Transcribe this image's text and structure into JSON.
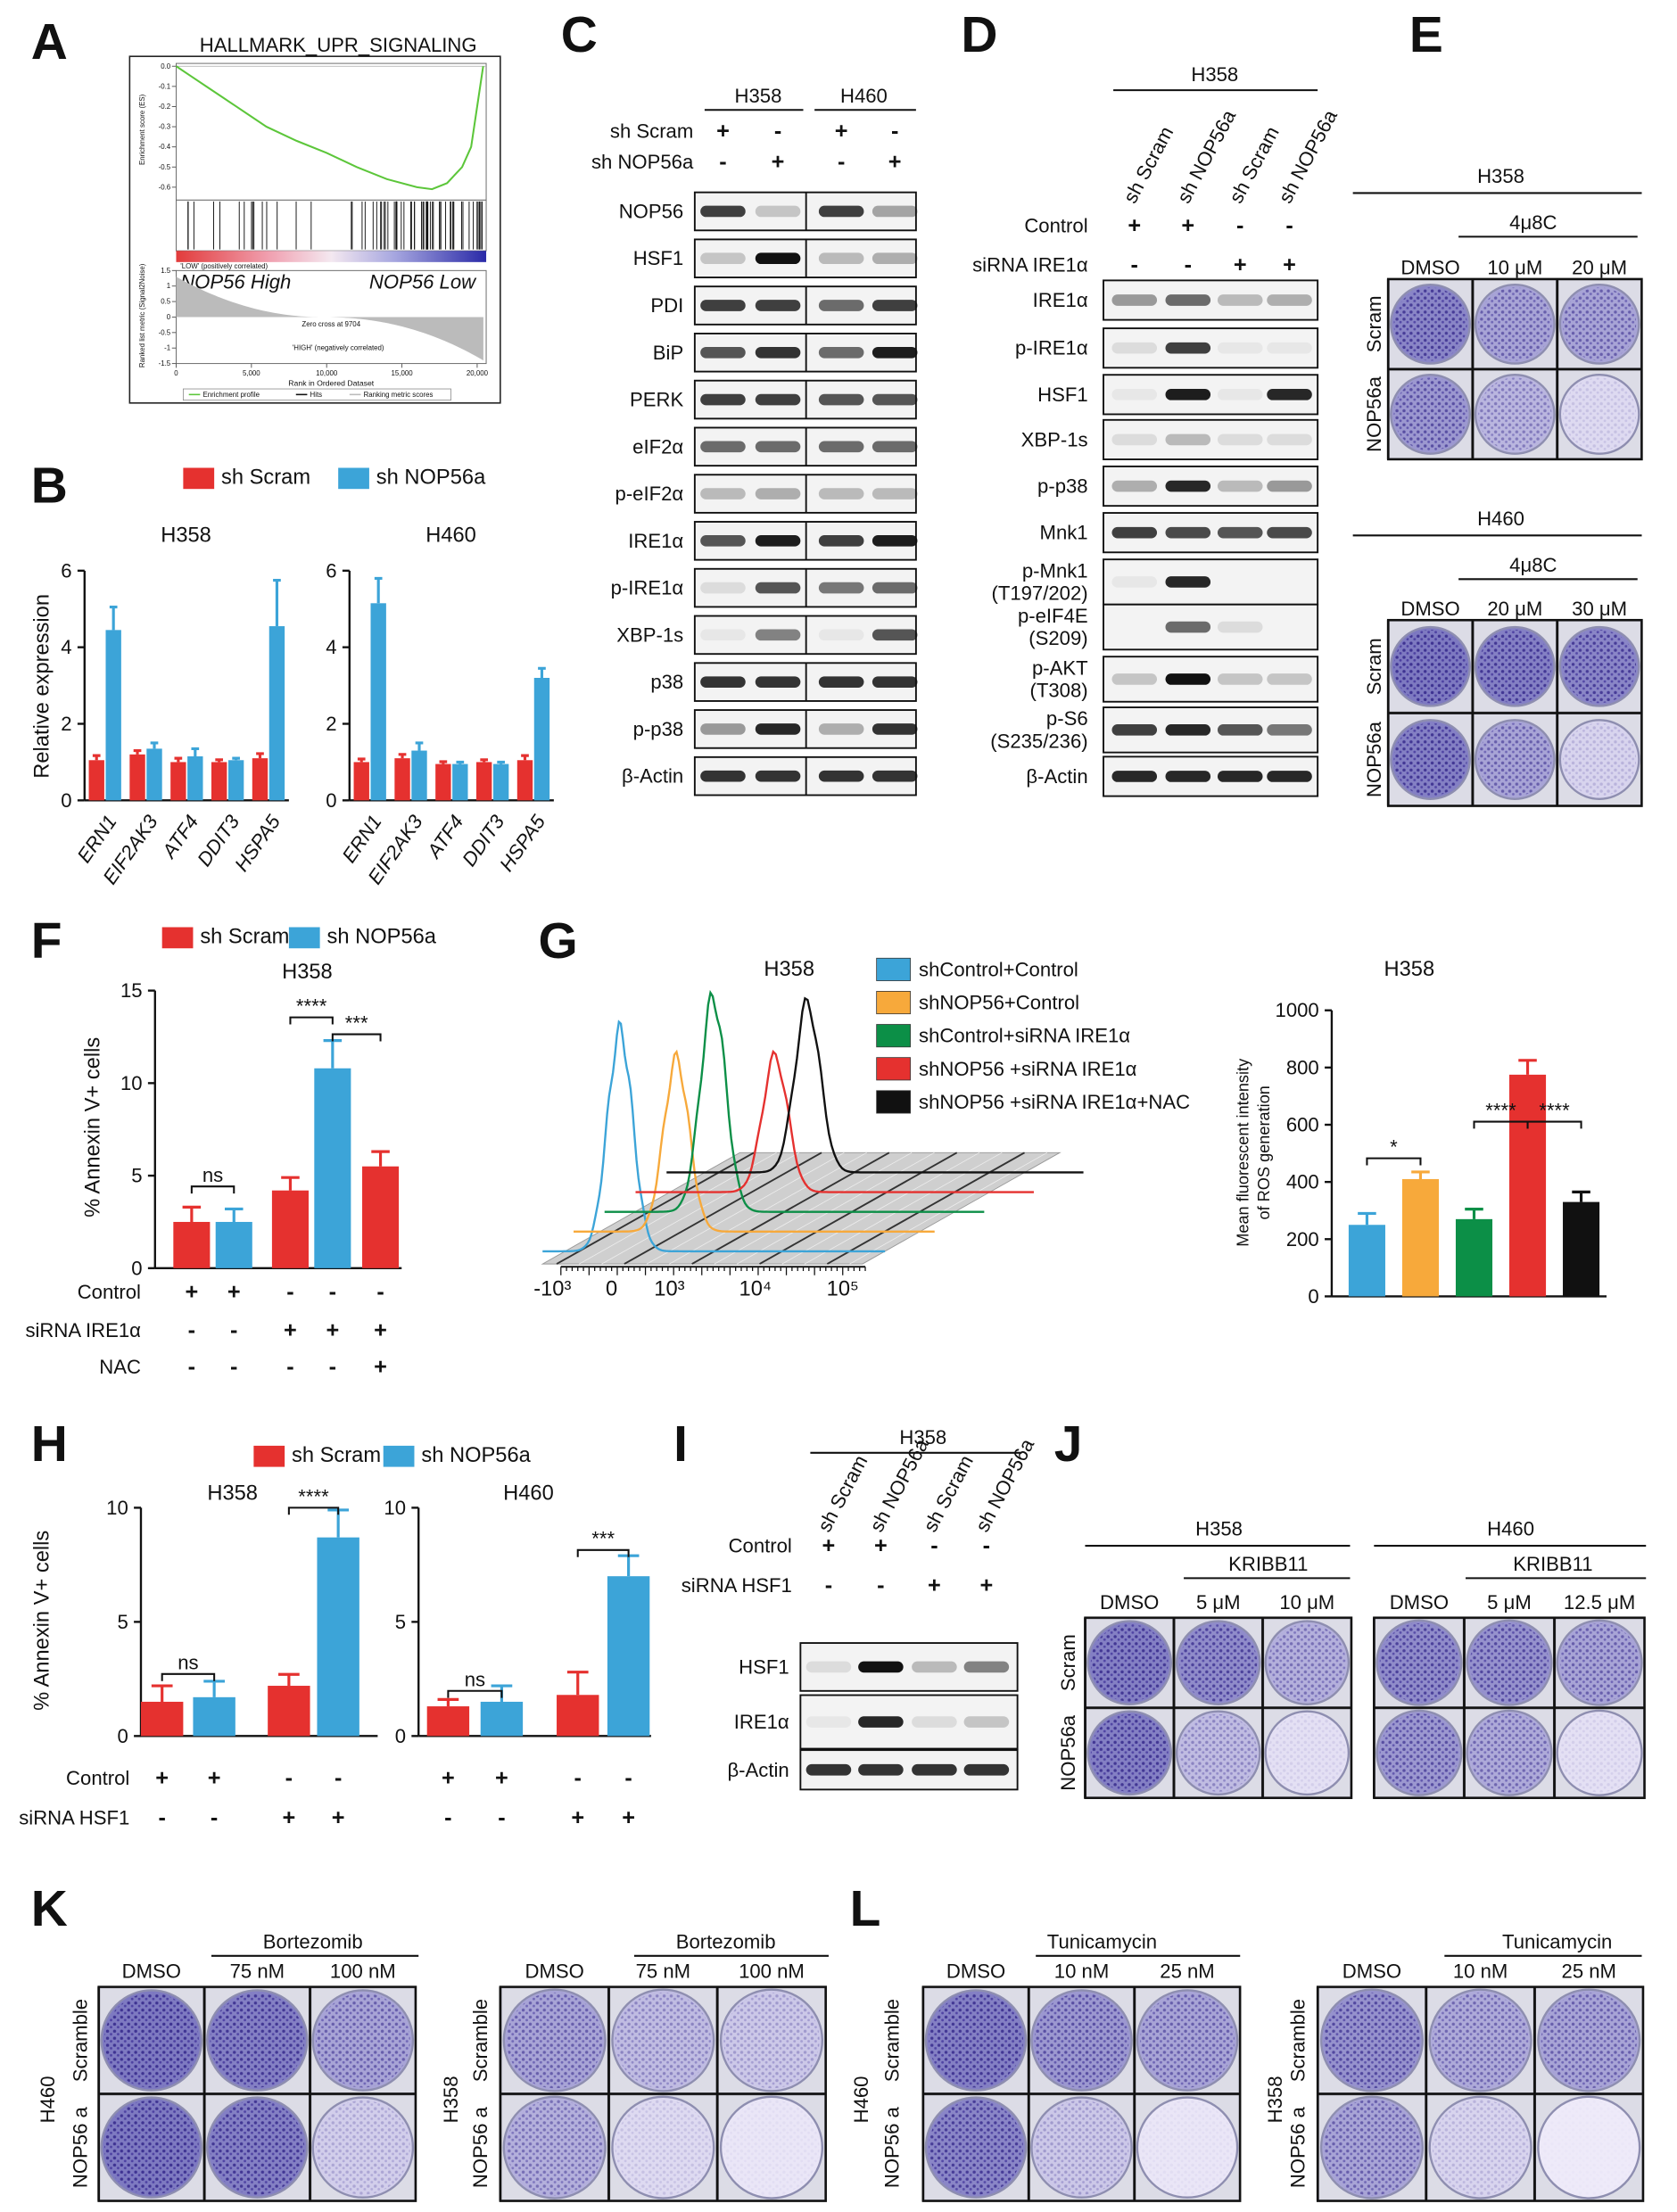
{
  "panels": {
    "A": {
      "label": "A",
      "title": "HALLMARK_UPR_SIGNALING",
      "es_label": "Enrichment score (ES)",
      "es_ylim": [
        -0.65,
        0
      ],
      "es_yticks": [
        {
          "value": 0,
          "label": "0.0"
        },
        -0.1,
        -0.2,
        -0.3,
        -0.4,
        -0.5,
        -0.6
      ],
      "es_curve": {
        "x": [
          0,
          1000,
          2000,
          4000,
          6000,
          8000,
          10000,
          12000,
          14000,
          16000,
          17000,
          18000,
          19000,
          19600,
          20000,
          20400
        ],
        "values": [
          0,
          -0.05,
          -0.1,
          -0.2,
          -0.3,
          -0.37,
          -0.43,
          -0.5,
          -0.56,
          -0.6,
          -0.61,
          -0.58,
          -0.5,
          -0.4,
          -0.2,
          0
        ]
      },
      "xlim": [
        0,
        20600
      ],
      "xticks": [
        0,
        {
          "value": 5000,
          "label": "5,000"
        },
        {
          "value": 10000,
          "label": "10,000"
        },
        {
          "value": 15000,
          "label": "15,000"
        },
        {
          "value": 20000,
          "label": "20,000"
        }
      ],
      "metric_label": "Ranked list metric (Signal2Noise)",
      "metric_ylim": [
        -1.5,
        1.5
      ],
      "metric_yticks": [
        1.5,
        1,
        0.5,
        0,
        -0.5,
        -1,
        -1.5
      ],
      "low_note": "'LOW' (positively correlated)",
      "high_group": "NOP56 High",
      "low_group": "NOP56 Low",
      "zero_cross": "Zero cross at 9704",
      "high_note": "'HIGH' (negatively correlated)",
      "x_label": "Rank in Ordered Dataset",
      "legend": [
        "Enrichment profile",
        "Hits",
        "Ranking metric scores"
      ]
    },
    "B": {
      "label": "B",
      "legend": [
        {
          "name": "sh Scram",
          "color": "#e5312f"
        },
        {
          "name": "sh NOP56a",
          "color": "#3ca4d8"
        }
      ],
      "y_label": "Relative expression",
      "charts": [
        {
          "title": "H358",
          "categories": [
            "ERN1",
            "EIF2AK3",
            "ATF4",
            "DDIT3",
            "HSPA5"
          ],
          "ylim": [
            0,
            6
          ],
          "yticks": [
            0,
            2,
            4,
            6
          ],
          "series": [
            {
              "values": [
                1.05,
                1.2,
                1.0,
                1.0,
                1.1
              ],
              "errors": [
                0.12,
                0.1,
                0.1,
                0.06,
                0.12
              ]
            },
            {
              "values": [
                4.45,
                1.35,
                1.15,
                1.05,
                4.55
              ],
              "errors": [
                0.6,
                0.15,
                0.2,
                0.05,
                1.2
              ]
            }
          ]
        },
        {
          "title": "H460",
          "categories": [
            "ERN1",
            "EIF2AK3",
            "ATF4",
            "DDIT3",
            "HSPA5"
          ],
          "ylim": [
            0,
            6
          ],
          "yticks": [
            0,
            2,
            4,
            6
          ],
          "series": [
            {
              "values": [
                1.0,
                1.1,
                0.95,
                1.0,
                1.05
              ],
              "errors": [
                0.08,
                0.1,
                0.06,
                0.06,
                0.12
              ]
            },
            {
              "values": [
                5.15,
                1.3,
                0.95,
                0.95,
                3.2
              ],
              "errors": [
                0.65,
                0.2,
                0.05,
                0.05,
                0.25
              ]
            }
          ]
        }
      ]
    },
    "C": {
      "label": "C",
      "groups": [
        "H358",
        "H460"
      ],
      "conditions": [
        {
          "name": "sh Scram",
          "signs": [
            "+",
            "-",
            "+",
            "-"
          ]
        },
        {
          "name": "sh NOP56a",
          "signs": [
            "-",
            "+",
            "-",
            "+"
          ]
        }
      ],
      "rows": [
        "NOP56",
        "HSF1",
        "PDI",
        "BiP",
        "PERK",
        "eIF2α",
        "p-eIF2α",
        "IRE1α",
        "p-IRE1α",
        "XBP-1s",
        "p38",
        "p-p38",
        "β-Actin"
      ]
    },
    "D": {
      "label": "D",
      "header": "H358",
      "lanes": [
        "sh Scram",
        "sh NOP56a",
        "sh Scram",
        "sh NOP56a"
      ],
      "conditions": [
        {
          "name": "Control",
          "signs": [
            "+",
            "+",
            "-",
            "-"
          ]
        },
        {
          "name": "siRNA IRE1α",
          "signs": [
            "-",
            "-",
            "+",
            "+"
          ]
        }
      ],
      "rows": [
        "IRE1α",
        "p-IRE1α",
        "HSF1",
        "XBP-1s",
        "p-p38",
        "Mnk1",
        [
          "p-Mnk1",
          "(T197/202)"
        ],
        [
          "p-eIF4E",
          "(S209)"
        ],
        [
          "p-AKT",
          "(T308)"
        ],
        [
          "p-S6",
          "(S235/236)"
        ],
        "β-Actin"
      ]
    },
    "E": {
      "label": "E",
      "sets": [
        {
          "cell": "H358",
          "drug": "4μ8C",
          "columns": [
            "DMSO",
            "10 μM",
            "20 μM"
          ],
          "rows": [
            "Scram",
            "NOP56a"
          ]
        },
        {
          "cell": "H460",
          "drug": "4μ8C",
          "columns": [
            "DMSO",
            "20 μM",
            "30 μM"
          ],
          "rows": [
            "Scram",
            "NOP56a"
          ]
        }
      ]
    },
    "F": {
      "label": "F",
      "legend": [
        {
          "name": "sh Scram",
          "color": "#e5312f"
        },
        {
          "name": "sh NOP56a",
          "color": "#3ca4d8"
        }
      ],
      "title": "H358",
      "y_label": "% Annexin V+ cells",
      "ylim": [
        0,
        15
      ],
      "yticks": [
        0,
        5,
        10,
        15
      ],
      "values": [
        2.5,
        2.5,
        4.2,
        10.8,
        5.5
      ],
      "errors": [
        0.8,
        0.7,
        0.7,
        1.5,
        0.8
      ],
      "colors": [
        "#e5312f",
        "#3ca4d8",
        "#e5312f",
        "#3ca4d8",
        "#e5312f"
      ],
      "significance": [
        "ns",
        "****",
        "***"
      ],
      "conditions": [
        {
          "name": "Control",
          "signs": [
            "+",
            "+",
            "-",
            "-",
            "-"
          ]
        },
        {
          "name": "siRNA IRE1α",
          "signs": [
            "-",
            "-",
            "+",
            "+",
            "+"
          ]
        },
        {
          "name": "NAC",
          "signs": [
            "-",
            "-",
            "-",
            "-",
            "+"
          ]
        }
      ]
    },
    "G": {
      "label": "G",
      "flow_title": "H358",
      "flow_xtick_labels": [
        "-10³",
        "0",
        "10³",
        "10⁴",
        "10⁵"
      ],
      "legend": [
        {
          "name": "shControl+Control",
          "color": "#3ca4d8"
        },
        {
          "name": "shNOP56+Control",
          "color": "#f7a93b"
        },
        {
          "name": "shControl+siRNA IRE1α",
          "color": "#0c8f47"
        },
        {
          "name": "shNOP56 +siRNA IRE1α",
          "color": "#e5312f"
        },
        {
          "name": "shNOP56 +siRNA IRE1α+NAC",
          "color": "#111111"
        }
      ],
      "bar_title": "H358",
      "y_label": [
        "Mean fluorescent intensity",
        "of ROS generation"
      ],
      "ylim": [
        0,
        1000
      ],
      "yticks": [
        0,
        200,
        400,
        600,
        800,
        1000
      ],
      "values": [
        250,
        410,
        270,
        775,
        330
      ],
      "errors": [
        40,
        25,
        35,
        50,
        35
      ],
      "significance": [
        "*",
        "****",
        "****"
      ]
    },
    "H": {
      "label": "H",
      "legend": [
        {
          "name": "sh Scram",
          "color": "#e5312f"
        },
        {
          "name": "sh NOP56a",
          "color": "#3ca4d8"
        }
      ],
      "y_label": "% Annexin V+ cells",
      "charts": [
        {
          "title": "H358",
          "ylim": [
            0,
            10
          ],
          "yticks": [
            0,
            5,
            10
          ],
          "values": [
            1.5,
            1.7,
            2.2,
            8.7
          ],
          "errors": [
            0.7,
            0.7,
            0.5,
            1.2
          ],
          "colors": [
            "#e5312f",
            "#3ca4d8",
            "#e5312f",
            "#3ca4d8"
          ],
          "significance": [
            "ns",
            "****"
          ]
        },
        {
          "title": "H460",
          "ylim": [
            0,
            10
          ],
          "yticks": [
            0,
            5,
            10
          ],
          "values": [
            1.3,
            1.5,
            1.8,
            7.0
          ],
          "errors": [
            0.3,
            0.7,
            1.0,
            0.9
          ],
          "colors": [
            "#e5312f",
            "#3ca4d8",
            "#e5312f",
            "#3ca4d8"
          ],
          "significance": [
            "ns",
            "***"
          ]
        }
      ],
      "conditions": [
        {
          "name": "Control",
          "signs": [
            [
              "+",
              "+",
              "-",
              "-"
            ],
            [
              "+",
              "+",
              "-",
              "-"
            ]
          ]
        },
        {
          "name": "siRNA HSF1",
          "signs": [
            [
              "-",
              "-",
              "+",
              "+"
            ],
            [
              "-",
              "-",
              "+",
              "+"
            ]
          ]
        }
      ]
    },
    "I": {
      "label": "I",
      "header": "H358",
      "lanes": [
        "sh Scram",
        "sh NOP56a",
        "sh Scram",
        "sh NOP56a"
      ],
      "conditions": [
        {
          "name": "Control",
          "signs": [
            "+",
            "+",
            "-",
            "-"
          ]
        },
        {
          "name": "siRNA HSF1",
          "signs": [
            "-",
            "-",
            "+",
            "+"
          ]
        }
      ],
      "rows": [
        "HSF1",
        "IRE1α",
        "β-Actin"
      ]
    },
    "J": {
      "label": "J",
      "sets": [
        {
          "cell": "H358",
          "drug": "KRIBB11",
          "columns": [
            "DMSO",
            "5 μM",
            "10 μM"
          ],
          "rows": [
            "Scram",
            "NOP56a"
          ]
        },
        {
          "cell": "H460",
          "drug": "KRIBB11",
          "columns": [
            "DMSO",
            "5 μM",
            "12.5 μM"
          ]
        }
      ]
    },
    "K": {
      "label": "K",
      "sets": [
        {
          "cell": "H460",
          "drug": "Bortezomib",
          "columns": [
            "DMSO",
            "75 nM",
            "100 nM"
          ],
          "rows": [
            "Scramble",
            "NOP56 a"
          ]
        },
        {
          "cell": "H358",
          "drug": "Bortezomib",
          "columns": [
            "DMSO",
            "75 nM",
            "100 nM"
          ],
          "rows": [
            "Scramble",
            "NOP56 a"
          ]
        }
      ]
    },
    "L": {
      "label": "L",
      "sets": [
        {
          "cell": "H460",
          "drug": "Tunicamycin",
          "columns": [
            "DMSO",
            "10 nM",
            "25 nM"
          ],
          "rows": [
            "Scramble",
            "NOP56 a"
          ]
        },
        {
          "cell": "H358",
          "drug": "Tunicamycin",
          "columns": [
            "DMSO",
            "10 nM",
            "25 nM"
          ],
          "rows": [
            "Scramble",
            "NOP56 a"
          ]
        }
      ]
    }
  }
}
